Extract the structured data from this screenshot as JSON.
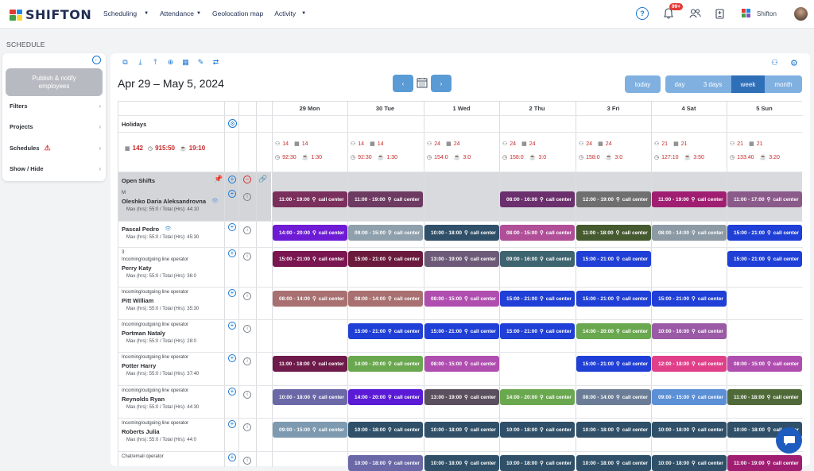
{
  "app": {
    "logo": "SHIFTON"
  },
  "nav": [
    {
      "label": "Scheduling",
      "caret": "▼"
    },
    {
      "label": "Attendance",
      "caret": "▼"
    },
    {
      "label": "Geolocation map",
      "caret": ""
    },
    {
      "label": "Activity",
      "caret": "▼"
    }
  ],
  "topbar": {
    "badge": "99+",
    "company": "Shifton"
  },
  "page_label": "SCHEDULE",
  "sidebar": {
    "publish_label": "Publish & notify employees",
    "items": [
      "Filters",
      "Projects",
      "Schedules",
      "Show / Hide"
    ]
  },
  "header": {
    "date_range": "Apr 29 – May 5, 2024",
    "today": "today",
    "views": [
      "day",
      "3 days",
      "week",
      "month"
    ],
    "active_view": "week"
  },
  "days": [
    "29 Mon",
    "30 Tue",
    "1 Wed",
    "2 Thu",
    "3 Fri",
    "4 Sat",
    "5 Sun"
  ],
  "holidays_label": "Holidays",
  "totals": {
    "people": "142",
    "hours": "915:50",
    "cost": "19:10"
  },
  "day_stats": [
    {
      "a": "14",
      "b": "14",
      "c": "92:30",
      "d": "1:30"
    },
    {
      "a": "14",
      "b": "14",
      "c": "92:30",
      "d": "1:30"
    },
    {
      "a": "24",
      "b": "24",
      "c": "154:0",
      "d": "3:0"
    },
    {
      "a": "24",
      "b": "24",
      "c": "158:0",
      "d": "3:0"
    },
    {
      "a": "24",
      "b": "24",
      "c": "158:0",
      "d": "3:0"
    },
    {
      "a": "21",
      "b": "21",
      "c": "127:10",
      "d": "3:50"
    },
    {
      "a": "21",
      "b": "21",
      "c": "133:40",
      "d": "3:20"
    }
  ],
  "open_shifts_label": "Open Shifts",
  "employees": [
    {
      "role": "M",
      "name": "Oleshko Daria Aleksandrovna",
      "hrs": "Max (hrs): 55:0 / Total (Hrs): 44:10"
    },
    {
      "role": "",
      "name": "Pascal Pedro",
      "hrs": "Max (hrs): 55:0 / Total (Hrs): 45:30"
    },
    {
      "role": "3\nIncoming/outgoing line operator",
      "name": "Perry Katy",
      "hrs": "Max (hrs): 55:0 / Total (Hrs): 36:0"
    },
    {
      "role": "Incoming/outgoing line operator",
      "name": "Pitt William",
      "hrs": "Max (hrs): 55:0 / Total (Hrs): 35:30"
    },
    {
      "role": "Incoming/outgoing line operator",
      "name": "Portman Nataly",
      "hrs": "Max (hrs): 55:0 / Total (Hrs): 28:0"
    },
    {
      "role": "Incoming/outgoing line operator",
      "name": "Potter Harry",
      "hrs": "Max (hrs): 55:0 / Total (Hrs): 37:40"
    },
    {
      "role": "Incoming/outgoing line operator",
      "name": "Reynolds Ryan",
      "hrs": "Max (hrs): 55:0 / Total (Hrs): 44:30"
    },
    {
      "role": "Incoming/outgoing line operator",
      "name": "Roberts Julia",
      "hrs": "Max (hrs): 55:0 / Total (Hrs): 44:0"
    },
    {
      "role": "Chat/email operator",
      "name": "",
      "hrs": ""
    }
  ],
  "shift_location": "call center",
  "shifts": [
    [
      {
        "t": "11:00 - 19:00",
        "c": "#7a2f5c"
      },
      {
        "t": "11:00 - 19:00",
        "c": "#6d3a62"
      },
      null,
      {
        "t": "08:00 - 16:00",
        "c": "#6b2f6d"
      },
      {
        "t": "12:00 - 19:00",
        "c": "#6f6f6f"
      },
      {
        "t": "11:00 - 19:00",
        "c": "#a01e72"
      },
      {
        "t": "11:00 - 17:00",
        "c": "#8a5a8a"
      }
    ],
    [
      {
        "t": "14:00 - 20:00",
        "c": "#6e1bd6"
      },
      {
        "t": "09:00 - 15:00",
        "c": "#8fa0ad"
      },
      {
        "t": "10:00 - 18:00",
        "c": "#2f5068"
      },
      {
        "t": "08:00 - 15:00",
        "c": "#b04e98"
      },
      {
        "t": "11:00 - 18:00",
        "c": "#455a2f"
      },
      {
        "t": "08:00 - 14:00",
        "c": "#8b9aa5"
      },
      {
        "t": "15:00 - 21:00",
        "c": "#1f3fd6"
      }
    ],
    [
      {
        "t": "15:00 - 21:00",
        "c": "#7a1650"
      },
      {
        "t": "15:00 - 21:00",
        "c": "#6a1a3c"
      },
      {
        "t": "13:00 - 19:00",
        "c": "#6d5a78"
      },
      {
        "t": "09:00 - 16:00",
        "c": "#3e6470"
      },
      {
        "t": "15:00 - 21:00",
        "c": "#1f3fd6"
      },
      null,
      {
        "t": "15:00 - 21:00",
        "c": "#1f3fd6"
      }
    ],
    [
      {
        "t": "08:00 - 14:00",
        "c": "#a87070"
      },
      {
        "t": "08:00 - 14:00",
        "c": "#a87070"
      },
      {
        "t": "08:00 - 15:00",
        "c": "#b04eb0"
      },
      {
        "t": "15:00 - 21:00",
        "c": "#1f3fd6"
      },
      {
        "t": "15:00 - 21:00",
        "c": "#1f3fd6"
      },
      {
        "t": "15:00 - 21:00",
        "c": "#1f3fd6"
      },
      null
    ],
    [
      null,
      {
        "t": "15:00 - 21:00",
        "c": "#1f3fd6"
      },
      {
        "t": "15:00 - 21:00",
        "c": "#1f3fd6"
      },
      {
        "t": "15:00 - 21:00",
        "c": "#1f3fd6"
      },
      {
        "t": "14:00 - 20:00",
        "c": "#6aa84f"
      },
      {
        "t": "10:00 - 16:00",
        "c": "#9a5aa6"
      },
      null
    ],
    [
      {
        "t": "11:00 - 18:00",
        "c": "#6e1a4a"
      },
      {
        "t": "14:00 - 20:00",
        "c": "#6aa84f"
      },
      {
        "t": "08:00 - 15:00",
        "c": "#b04eb0"
      },
      null,
      {
        "t": "15:00 - 21:00",
        "c": "#1f3fd6"
      },
      {
        "t": "12:00 - 18:00",
        "c": "#e0408a"
      },
      {
        "t": "08:00 - 15:00",
        "c": "#b04eb0"
      }
    ],
    [
      {
        "t": "10:00 - 18:00",
        "c": "#6b68a8"
      },
      {
        "t": "14:00 - 20:00",
        "c": "#5a1ad6"
      },
      {
        "t": "13:00 - 19:00",
        "c": "#5a4f5e"
      },
      {
        "t": "14:00 - 20:00",
        "c": "#6aa84f"
      },
      {
        "t": "08:00 - 14:00",
        "c": "#6b7d96"
      },
      {
        "t": "09:00 - 15:00",
        "c": "#5b8fd6"
      },
      {
        "t": "11:00 - 18:00",
        "c": "#4f6a38"
      }
    ],
    [
      {
        "t": "09:00 - 15:00",
        "c": "#7d9ab0"
      },
      {
        "t": "10:00 - 18:00",
        "c": "#2f5068"
      },
      {
        "t": "10:00 - 18:00",
        "c": "#2f5068"
      },
      {
        "t": "10:00 - 18:00",
        "c": "#2f5068"
      },
      {
        "t": "10:00 - 18:00",
        "c": "#2f5068"
      },
      {
        "t": "10:00 - 18:00",
        "c": "#2f5068"
      },
      {
        "t": "10:00 - 18:00",
        "c": "#2f5068"
      }
    ],
    [
      null,
      {
        "t": "10:00 - 18:00",
        "c": "#6b68a8"
      },
      {
        "t": "10:00 - 18:00",
        "c": "#2f5068"
      },
      {
        "t": "10:00 - 18:00",
        "c": "#2f5068"
      },
      {
        "t": "10:00 - 18:00",
        "c": "#2f5068"
      },
      {
        "t": "10:00 - 18:00",
        "c": "#2f5068"
      },
      {
        "t": "11:00 - 19:00",
        "c": "#a01e72"
      }
    ]
  ],
  "colors": {
    "accent": "#1976d2",
    "btn_blue": "#5b9bd5",
    "btn_active": "#2f6fb8"
  }
}
